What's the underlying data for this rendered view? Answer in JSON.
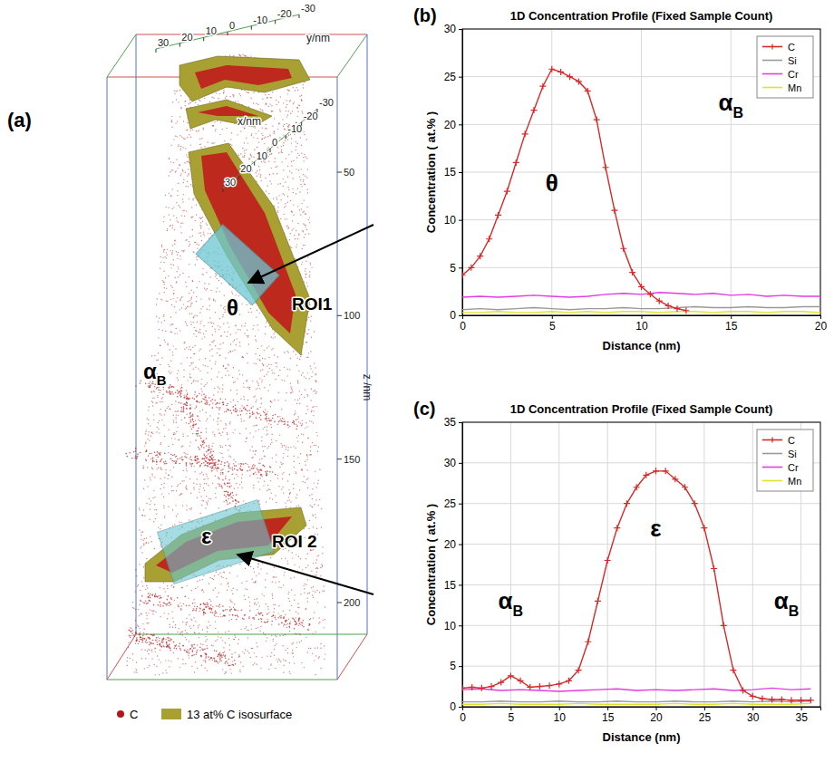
{
  "reconstruction": {
    "panel_label": "(a)",
    "axes": {
      "x": {
        "label": "x/nm",
        "ticks": [
          30,
          20,
          10,
          0,
          -10,
          -20,
          -30
        ]
      },
      "y": {
        "label": "y/nm",
        "ticks": [
          30,
          20,
          10,
          0,
          -10,
          -20,
          -30
        ]
      },
      "z": {
        "label": "z /nm",
        "ticks": [
          50,
          100,
          150,
          200
        ]
      }
    },
    "labels": [
      {
        "text": "θ"
      },
      {
        "text": "ROI1"
      },
      {
        "text": "α",
        "sub": "B"
      },
      {
        "text": "ε"
      },
      {
        "text": "ROI 2"
      }
    ],
    "legend": [
      {
        "name": "C",
        "color": "#b01818"
      },
      {
        "name": "13 at% C isosurface",
        "color": "#a8a032"
      }
    ]
  },
  "chart_data": [
    {
      "type": "line",
      "panel_label": "(b)",
      "title": "1D Concentration Profile (Fixed Sample Count)",
      "x_label": "Distance (nm)",
      "y_label": "Concentration ( at.% )",
      "xlim": [
        0,
        20
      ],
      "xticks": [
        0,
        5,
        10,
        15,
        20
      ],
      "ylim": [
        0,
        30
      ],
      "yticks": [
        0,
        5,
        10,
        15,
        20,
        25,
        30
      ],
      "grid": true,
      "legend": "upper right",
      "series": [
        {
          "name": "C",
          "color": "#d42a2a",
          "marker": "plus",
          "x": [
            0,
            0.5,
            1,
            1.5,
            2,
            2.5,
            3,
            3.5,
            4,
            4.5,
            5,
            5.5,
            6,
            6.5,
            7,
            7.5,
            8,
            8.5,
            9,
            9.5,
            10,
            10.5,
            11,
            11.5,
            12,
            12.5
          ],
          "values": [
            4.2,
            5.0,
            6.2,
            8,
            10.5,
            13,
            16,
            19,
            21.5,
            24,
            25.8,
            25.5,
            25,
            24.5,
            23.5,
            20.5,
            15.5,
            11,
            7,
            4.5,
            3,
            2.2,
            1.5,
            1,
            0.7,
            0.5
          ]
        },
        {
          "name": "Si",
          "color": "#9a9a9a",
          "line_style": "solid",
          "x": [
            0,
            1,
            2,
            3,
            4,
            5,
            6,
            7,
            8,
            9,
            10,
            11,
            12,
            13,
            14,
            15,
            16,
            17,
            18,
            19,
            20
          ],
          "values": [
            0.6,
            0.7,
            0.6,
            0.7,
            0.8,
            0.7,
            0.6,
            0.7,
            0.7,
            0.8,
            0.7,
            0.7,
            0.8,
            0.9,
            0.8,
            0.8,
            0.9,
            0.8,
            0.8,
            0.9,
            0.9
          ]
        },
        {
          "name": "Cr",
          "color": "#e03ce0",
          "line_style": "solid",
          "x": [
            0,
            1,
            2,
            3,
            4,
            5,
            6,
            7,
            8,
            9,
            10,
            11,
            12,
            13,
            14,
            15,
            16,
            17,
            18,
            19,
            20
          ],
          "values": [
            1.9,
            2.0,
            1.9,
            2.0,
            2.1,
            2.0,
            1.9,
            2.0,
            2.2,
            2.3,
            2.2,
            2.4,
            2.3,
            2.2,
            2.3,
            2.1,
            2.2,
            2.0,
            2.1,
            2.0,
            2.0
          ]
        },
        {
          "name": "Mn",
          "color": "#e2e22a",
          "line_style": "solid",
          "x": [
            0,
            1,
            2,
            3,
            4,
            5,
            6,
            7,
            8,
            9,
            10,
            11,
            12,
            13,
            14,
            15,
            16,
            17,
            18,
            19,
            20
          ],
          "values": [
            0.3,
            0.3,
            0.4,
            0.3,
            0.3,
            0.4,
            0.3,
            0.4,
            0.3,
            0.4,
            0.4,
            0.3,
            0.4,
            0.4,
            0.3,
            0.4,
            0.4,
            0.3,
            0.4,
            0.4,
            0.3
          ]
        }
      ],
      "annotations": [
        {
          "text": "θ",
          "x": 5,
          "y": 13
        },
        {
          "text": "α",
          "sub": "B",
          "x": 15,
          "y": 21.5
        }
      ]
    },
    {
      "type": "line",
      "panel_label": "(c)",
      "title": "1D Concentration Profile (Fixed Sample Count)",
      "x_label": "Distance (nm)",
      "y_label": "Concentration ( at.% )",
      "xlim": [
        0,
        37
      ],
      "xticks": [
        0,
        5,
        10,
        15,
        20,
        25,
        30,
        35
      ],
      "ylim": [
        0,
        35
      ],
      "yticks": [
        0,
        5,
        10,
        15,
        20,
        25,
        30,
        35
      ],
      "grid": true,
      "legend": "upper right",
      "series": [
        {
          "name": "C",
          "color": "#d42a2a",
          "marker": "plus",
          "x": [
            0,
            1,
            2,
            3,
            4,
            5,
            6,
            7,
            8,
            9,
            10,
            11,
            12,
            13,
            14,
            15,
            16,
            17,
            18,
            19,
            20,
            21,
            22,
            23,
            24,
            25,
            26,
            27,
            28,
            29,
            30,
            31,
            32,
            33,
            34,
            35,
            36
          ],
          "values": [
            2.3,
            2.4,
            2.3,
            2.5,
            3,
            3.8,
            3.2,
            2.4,
            2.5,
            2.6,
            2.8,
            3.2,
            4.5,
            8,
            13,
            18,
            22,
            25,
            27,
            28.5,
            29,
            29,
            28,
            27,
            25,
            22,
            17,
            10,
            4.5,
            2,
            1.3,
            1,
            0.9,
            0.9,
            0.8,
            0.8,
            0.8
          ]
        },
        {
          "name": "Si",
          "color": "#9a9a9a",
          "line_style": "solid",
          "x": [
            0,
            2,
            4,
            6,
            8,
            10,
            12,
            14,
            16,
            18,
            20,
            22,
            24,
            26,
            28,
            30,
            32,
            34,
            36
          ],
          "values": [
            0.6,
            0.6,
            0.7,
            0.6,
            0.6,
            0.7,
            0.6,
            0.6,
            0.7,
            0.6,
            0.6,
            0.7,
            0.6,
            0.6,
            0.7,
            0.6,
            0.7,
            0.6,
            0.7
          ]
        },
        {
          "name": "Cr",
          "color": "#e03ce0",
          "line_style": "solid",
          "x": [
            0,
            2,
            4,
            6,
            8,
            10,
            12,
            14,
            16,
            18,
            20,
            22,
            24,
            26,
            28,
            30,
            32,
            34,
            36
          ],
          "values": [
            2.1,
            2.2,
            2.0,
            2.1,
            2.0,
            1.9,
            2.0,
            2.1,
            2.2,
            2.0,
            2.1,
            2.0,
            2.1,
            2.2,
            2.0,
            2.1,
            2.3,
            2.1,
            2.2
          ]
        },
        {
          "name": "Mn",
          "color": "#e2e22a",
          "line_style": "solid",
          "x": [
            0,
            2,
            4,
            6,
            8,
            10,
            12,
            14,
            16,
            18,
            20,
            22,
            24,
            26,
            28,
            30,
            32,
            34,
            36
          ],
          "values": [
            0.3,
            0.3,
            0.4,
            0.3,
            0.3,
            0.3,
            0.4,
            0.3,
            0.3,
            0.3,
            0.3,
            0.4,
            0.3,
            0.3,
            0.4,
            0.3,
            0.3,
            0.3,
            0.4
          ]
        }
      ],
      "annotations": [
        {
          "text": "α",
          "sub": "B",
          "x": 5,
          "y": 12
        },
        {
          "text": "ε",
          "x": 20,
          "y": 21
        },
        {
          "text": "α",
          "sub": "B",
          "x": 33.5,
          "y": 12
        }
      ]
    }
  ]
}
